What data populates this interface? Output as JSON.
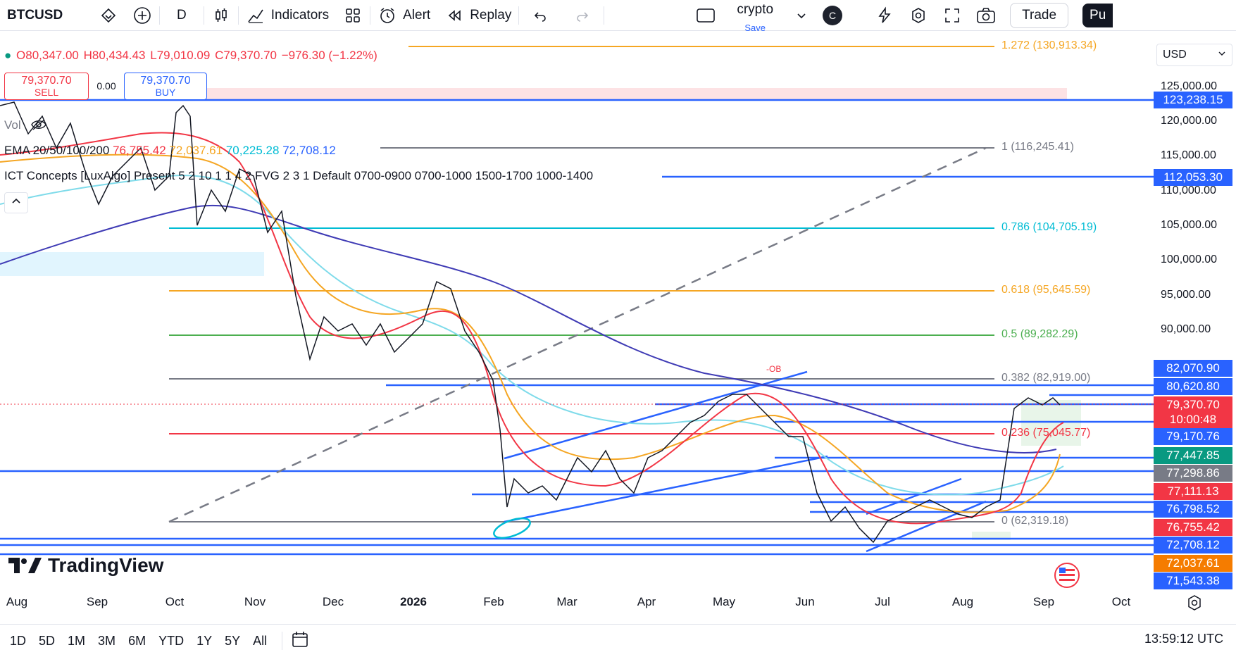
{
  "toolbar": {
    "symbol": "BTCUSD",
    "interval": "D",
    "indicators_label": "Indicators",
    "alert_label": "Alert",
    "replay_label": "Replay",
    "layout_name": "crypto",
    "layout_save": "Save",
    "avatar_letter": "C",
    "trade_label": "Trade",
    "publish_label": "Pu"
  },
  "legend": {
    "open": "O80,347.00",
    "high": "H80,434.43",
    "low": "L79,010.09",
    "close": "C79,370.70",
    "change": "−976.30 (−1.22%)",
    "sell_price": "79,370.70",
    "sell_label": "SELL",
    "spread": "0.00",
    "buy_price": "79,370.70",
    "buy_label": "BUY",
    "vol_label": "Vol",
    "ema_label": "EMA 20/50/100/200",
    "ema20": "76,755.42",
    "ema50": "72,037.61",
    "ema100": "70,225.28",
    "ema200": "72,708.12",
    "ict_label": "ICT Concepts [LuxAlgo] Present 5 2 10 1 1 4 2 FVG 2 3 1 Default 0700-0900 0700-1000 1500-1700 1000-1400"
  },
  "currency": "USD",
  "fib_levels": [
    {
      "label": "1.272 (130,913.34)",
      "color": "#f5a623"
    },
    {
      "label": "1 (116,245.41)",
      "color": "#787b86"
    },
    {
      "label": "0.786 (104,705.19)",
      "color": "#00bcd4"
    },
    {
      "label": "0.618 (95,645.59)",
      "color": "#f5a623"
    },
    {
      "label": "0.5 (89,282.29)",
      "color": "#4caf50"
    },
    {
      "label": "0.382 (82,919.00)",
      "color": "#787b86"
    },
    {
      "label": "0.236 (75,045.77)",
      "color": "#f23645"
    },
    {
      "label": "0 (62,319.18)",
      "color": "#787b86"
    }
  ],
  "price_axis": [
    "125,000.00",
    "120,000.00",
    "115,000.00",
    "110,000.00",
    "105,000.00",
    "100,000.00",
    "95,000.00",
    "90,000.00"
  ],
  "price_tags": [
    {
      "text": "123,238.15",
      "color": "#2962ff"
    },
    {
      "text": "112,053.30",
      "color": "#2962ff"
    },
    {
      "text": "82,070.90",
      "color": "#2962ff"
    },
    {
      "text": "80,620.80",
      "color": "#2962ff"
    },
    {
      "text": "79,370.70",
      "color": "#f23645"
    },
    {
      "text": "10:00:48",
      "color": "#f23645"
    },
    {
      "text": "79,170.76",
      "color": "#2962ff"
    },
    {
      "text": "77,447.85",
      "color": "#089981"
    },
    {
      "text": "77,298.86",
      "color": "#787b86"
    },
    {
      "text": "77,111.13",
      "color": "#f23645"
    },
    {
      "text": "76,798.52",
      "color": "#2962ff"
    },
    {
      "text": "76,755.42",
      "color": "#f23645"
    },
    {
      "text": "72,708.12",
      "color": "#2962ff"
    },
    {
      "text": "72,037.61",
      "color": "#f57c00"
    },
    {
      "text": "71,543.38",
      "color": "#2962ff"
    }
  ],
  "ob_label": "-OB",
  "time_axis": [
    "Aug",
    "Sep",
    "Oct",
    "Nov",
    "Dec",
    "2026",
    "Feb",
    "Mar",
    "Apr",
    "May",
    "Jun",
    "Jul",
    "Aug",
    "Sep",
    "Oct"
  ],
  "ranges": [
    "1D",
    "5D",
    "1M",
    "3M",
    "6M",
    "YTD",
    "1Y",
    "5Y",
    "All"
  ],
  "clock": "13:59:12 UTC",
  "brand": "TradingView"
}
